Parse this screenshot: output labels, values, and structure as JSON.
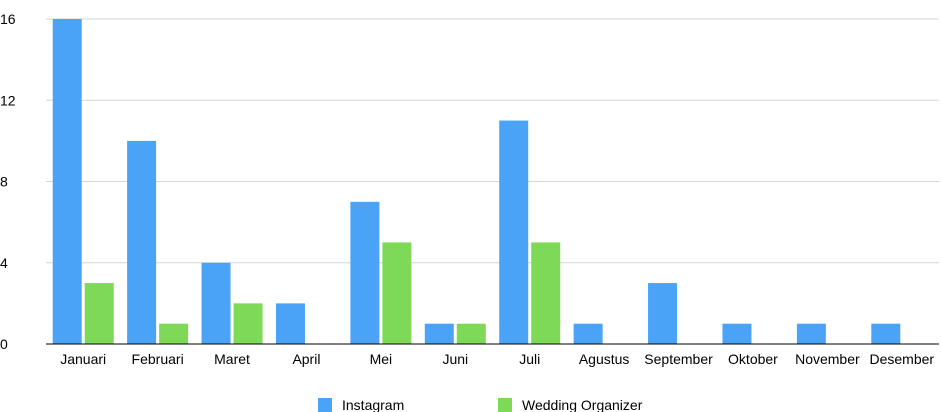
{
  "chart_data": {
    "type": "bar",
    "categories": [
      "Januari",
      "Februari",
      "Maret",
      "April",
      "Mei",
      "Juni",
      "Juli",
      "Agustus",
      "September",
      "Oktober",
      "November",
      "Desember"
    ],
    "series": [
      {
        "name": "Instagram",
        "color": "#4aa3f7",
        "values": [
          16,
          10,
          4,
          2,
          7,
          1,
          11,
          1,
          3,
          1,
          1,
          1
        ]
      },
      {
        "name": "Wedding Organizer",
        "color": "#7ed957",
        "values": [
          3,
          1,
          2,
          0,
          5,
          1,
          5,
          0,
          0,
          0,
          0,
          0
        ]
      }
    ],
    "yticks": [
      "0",
      "4",
      "8",
      "12",
      "16"
    ],
    "ylim": [
      0,
      16
    ],
    "grid": true,
    "legend_position": "bottom"
  }
}
